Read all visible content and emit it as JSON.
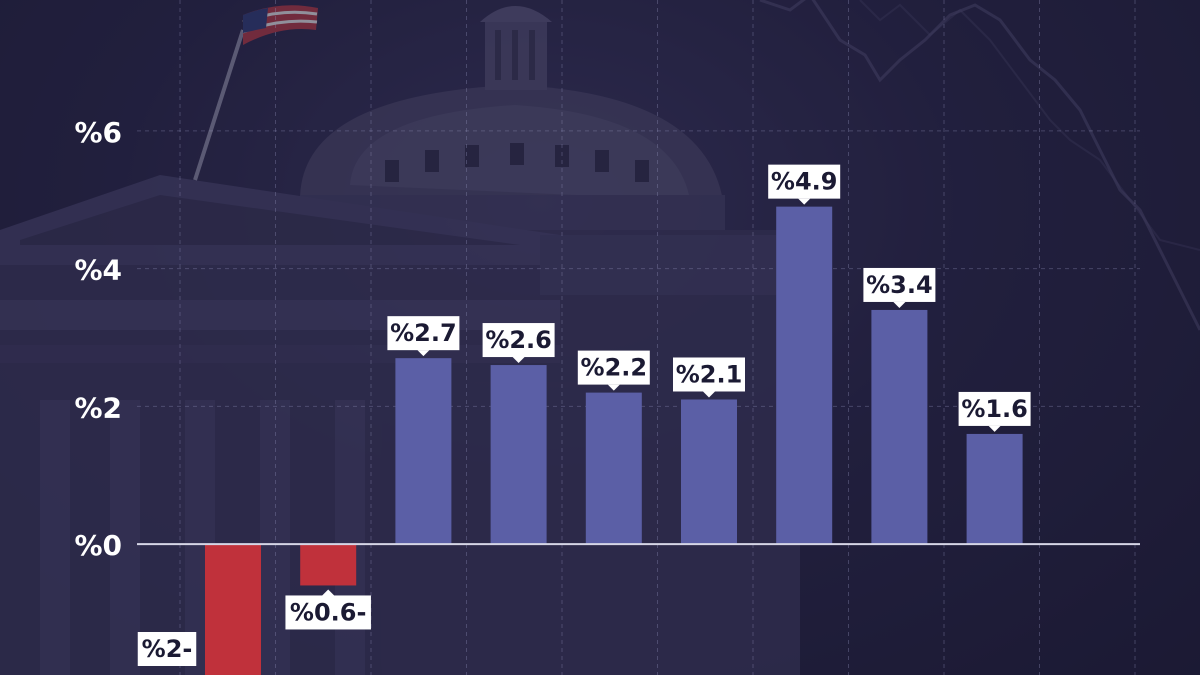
{
  "chart_data": {
    "type": "bar",
    "categories": [
      "",
      "",
      "",
      "",
      "",
      "",
      "",
      "",
      ""
    ],
    "values": [
      -2,
      -0.6,
      2.7,
      2.6,
      2.2,
      2.1,
      4.9,
      3.4,
      1.6
    ],
    "value_labels": [
      "%2-",
      "%0.6-",
      "%2.7",
      "%2.6",
      "%2.2",
      "%2.1",
      "%4.9",
      "%3.4",
      "%1.6"
    ],
    "y_ticks": [
      0,
      2,
      4,
      6
    ],
    "y_tick_labels": [
      "%0",
      "%2",
      "%4",
      "%6"
    ],
    "ylim": [
      -1.9,
      7.9
    ],
    "grid": true,
    "legend": "none",
    "title": "",
    "xlabel": "",
    "ylabel": "",
    "colors": {
      "positive": "#5b5fa6",
      "negative": "#c0313b",
      "label_box": "#ffffff",
      "label_text": "#1b1a33",
      "tick_text": "#ffffff",
      "gridline": "#8f8fb8",
      "baseline": "#d6d6e6"
    }
  }
}
